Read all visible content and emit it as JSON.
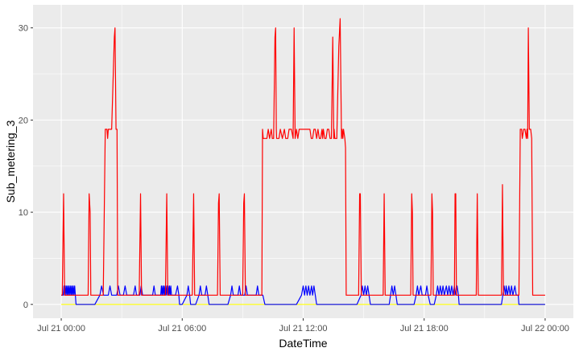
{
  "chart_data": {
    "type": "line",
    "xlabel": "DateTime",
    "ylabel": "Sub_metering_3",
    "x_unit": "minutes from Jul 21 00:00",
    "xlim": [
      -84,
      1524
    ],
    "ylim": [
      -1.5,
      32.5
    ],
    "x_ticks": [
      {
        "value": 0,
        "label": "Jul 21 00:00"
      },
      {
        "value": 360,
        "label": "Jul 21 06:00"
      },
      {
        "value": 720,
        "label": "Jul 21 12:00"
      },
      {
        "value": 1080,
        "label": "Jul 21 18:00"
      },
      {
        "value": 1440,
        "label": "Jul 22 00:00"
      }
    ],
    "y_ticks": [
      0,
      10,
      20,
      30
    ],
    "grid": true,
    "legend": "none",
    "colors": {
      "panel": "#ebebeb",
      "grid": "#ffffff",
      "yellow": "#ffff00",
      "blue": "#0000ff",
      "red": "#ff0000"
    },
    "series": [
      {
        "color": "#ffff00",
        "points": [
          [
            0,
            0
          ],
          [
            1440,
            0
          ]
        ]
      },
      {
        "color": "#0000ff",
        "points": [
          [
            0,
            1
          ],
          [
            6,
            1
          ],
          [
            8,
            2
          ],
          [
            10,
            1
          ],
          [
            12,
            2
          ],
          [
            14,
            1
          ],
          [
            16,
            2
          ],
          [
            18,
            1
          ],
          [
            20,
            2
          ],
          [
            22,
            1
          ],
          [
            24,
            2
          ],
          [
            26,
            1
          ],
          [
            28,
            2
          ],
          [
            30,
            1
          ],
          [
            32,
            2
          ],
          [
            34,
            1
          ],
          [
            36,
            2
          ],
          [
            38,
            1
          ],
          [
            40,
            2
          ],
          [
            42,
            1
          ],
          [
            44,
            0
          ],
          [
            100,
            0
          ],
          [
            115,
            1
          ],
          [
            120,
            2
          ],
          [
            126,
            1
          ],
          [
            140,
            1
          ],
          [
            145,
            2
          ],
          [
            150,
            1
          ],
          [
            165,
            1
          ],
          [
            170,
            2
          ],
          [
            175,
            1
          ],
          [
            185,
            1
          ],
          [
            190,
            2
          ],
          [
            195,
            1
          ],
          [
            215,
            1
          ],
          [
            220,
            2
          ],
          [
            224,
            1
          ],
          [
            234,
            1
          ],
          [
            238,
            2
          ],
          [
            242,
            1
          ],
          [
            272,
            1
          ],
          [
            276,
            2
          ],
          [
            280,
            1
          ],
          [
            296,
            1
          ],
          [
            298,
            2
          ],
          [
            300,
            1
          ],
          [
            302,
            2
          ],
          [
            304,
            1
          ],
          [
            306,
            2
          ],
          [
            308,
            1
          ],
          [
            310,
            2
          ],
          [
            312,
            1
          ],
          [
            314,
            2
          ],
          [
            316,
            1
          ],
          [
            318,
            2
          ],
          [
            320,
            1
          ],
          [
            322,
            2
          ],
          [
            324,
            1
          ],
          [
            326,
            2
          ],
          [
            328,
            1
          ],
          [
            340,
            1
          ],
          [
            346,
            2
          ],
          [
            350,
            1
          ],
          [
            352,
            0
          ],
          [
            360,
            0
          ],
          [
            374,
            1
          ],
          [
            378,
            2
          ],
          [
            382,
            1
          ],
          [
            385,
            0
          ],
          [
            400,
            0
          ],
          [
            410,
            1
          ],
          [
            414,
            2
          ],
          [
            418,
            1
          ],
          [
            428,
            1
          ],
          [
            432,
            2
          ],
          [
            436,
            1
          ],
          [
            440,
            0
          ],
          [
            496,
            0
          ],
          [
            504,
            1
          ],
          [
            508,
            2
          ],
          [
            512,
            1
          ],
          [
            526,
            1
          ],
          [
            530,
            2
          ],
          [
            534,
            1
          ],
          [
            546,
            1
          ],
          [
            550,
            2
          ],
          [
            554,
            1
          ],
          [
            580,
            1
          ],
          [
            584,
            2
          ],
          [
            588,
            1
          ],
          [
            600,
            1
          ],
          [
            606,
            0
          ],
          [
            700,
            0
          ],
          [
            715,
            1
          ],
          [
            720,
            2
          ],
          [
            724,
            1
          ],
          [
            728,
            2
          ],
          [
            732,
            1
          ],
          [
            736,
            2
          ],
          [
            740,
            1
          ],
          [
            745,
            2
          ],
          [
            748,
            1
          ],
          [
            752,
            2
          ],
          [
            756,
            1
          ],
          [
            760,
            0
          ],
          [
            880,
            0
          ],
          [
            892,
            1
          ],
          [
            896,
            2
          ],
          [
            900,
            1
          ],
          [
            904,
            2
          ],
          [
            908,
            1
          ],
          [
            912,
            2
          ],
          [
            916,
            1
          ],
          [
            920,
            0
          ],
          [
            976,
            0
          ],
          [
            980,
            1
          ],
          [
            984,
            2
          ],
          [
            988,
            1
          ],
          [
            992,
            2
          ],
          [
            996,
            1
          ],
          [
            1000,
            0
          ],
          [
            1050,
            0
          ],
          [
            1056,
            1
          ],
          [
            1060,
            2
          ],
          [
            1064,
            1
          ],
          [
            1070,
            2
          ],
          [
            1074,
            1
          ],
          [
            1084,
            1
          ],
          [
            1088,
            2
          ],
          [
            1092,
            1
          ],
          [
            1098,
            0
          ],
          [
            1110,
            0
          ],
          [
            1116,
            1
          ],
          [
            1120,
            2
          ],
          [
            1124,
            1
          ],
          [
            1128,
            2
          ],
          [
            1132,
            1
          ],
          [
            1136,
            2
          ],
          [
            1140,
            1
          ],
          [
            1146,
            2
          ],
          [
            1150,
            1
          ],
          [
            1154,
            2
          ],
          [
            1158,
            1
          ],
          [
            1162,
            2
          ],
          [
            1166,
            1
          ],
          [
            1170,
            2
          ],
          [
            1174,
            1
          ],
          [
            1178,
            2
          ],
          [
            1182,
            1
          ],
          [
            1184,
            0
          ],
          [
            1310,
            0
          ],
          [
            1314,
            1
          ],
          [
            1318,
            2
          ],
          [
            1322,
            1
          ],
          [
            1324,
            2
          ],
          [
            1328,
            1
          ],
          [
            1332,
            2
          ],
          [
            1336,
            1
          ],
          [
            1340,
            2
          ],
          [
            1344,
            1
          ],
          [
            1350,
            2
          ],
          [
            1354,
            1
          ],
          [
            1360,
            1
          ],
          [
            1362,
            0
          ],
          [
            1440,
            0
          ]
        ]
      },
      {
        "color": "#ff0000",
        "points": [
          [
            0,
            1
          ],
          [
            3,
            1
          ],
          [
            7,
            12
          ],
          [
            10,
            1
          ],
          [
            80,
            1
          ],
          [
            83,
            12
          ],
          [
            86,
            10
          ],
          [
            88,
            1
          ],
          [
            125,
            1
          ],
          [
            131,
            19
          ],
          [
            136,
            19
          ],
          [
            138,
            18
          ],
          [
            140,
            19
          ],
          [
            150,
            19
          ],
          [
            158,
            29
          ],
          [
            160,
            30
          ],
          [
            163,
            19
          ],
          [
            166,
            19
          ],
          [
            168,
            1
          ],
          [
            232,
            1
          ],
          [
            236,
            12
          ],
          [
            239,
            1
          ],
          [
            310,
            1
          ],
          [
            314,
            12
          ],
          [
            317,
            1
          ],
          [
            390,
            1
          ],
          [
            394,
            12
          ],
          [
            397,
            1
          ],
          [
            465,
            1
          ],
          [
            468,
            11
          ],
          [
            470,
            12
          ],
          [
            473,
            1
          ],
          [
            540,
            1
          ],
          [
            543,
            11
          ],
          [
            545,
            12
          ],
          [
            548,
            1
          ],
          [
            597,
            1
          ],
          [
            599,
            19
          ],
          [
            601,
            18
          ],
          [
            612,
            18
          ],
          [
            616,
            19
          ],
          [
            620,
            18
          ],
          [
            625,
            19
          ],
          [
            628,
            18
          ],
          [
            632,
            18
          ],
          [
            636,
            29
          ],
          [
            638,
            30
          ],
          [
            640,
            19
          ],
          [
            641,
            18
          ],
          [
            648,
            18
          ],
          [
            652,
            19
          ],
          [
            658,
            18
          ],
          [
            664,
            19
          ],
          [
            668,
            18
          ],
          [
            674,
            18
          ],
          [
            678,
            19
          ],
          [
            685,
            19
          ],
          [
            690,
            18
          ],
          [
            693,
            30
          ],
          [
            696,
            18
          ],
          [
            700,
            19
          ],
          [
            704,
            18
          ],
          [
            708,
            19
          ],
          [
            720,
            19
          ],
          [
            740,
            19
          ],
          [
            744,
            18
          ],
          [
            748,
            18
          ],
          [
            752,
            19
          ],
          [
            756,
            19
          ],
          [
            760,
            18
          ],
          [
            764,
            19
          ],
          [
            768,
            18
          ],
          [
            772,
            18
          ],
          [
            776,
            19
          ],
          [
            778,
            18
          ],
          [
            780,
            19
          ],
          [
            784,
            18
          ],
          [
            788,
            18
          ],
          [
            792,
            19
          ],
          [
            796,
            19
          ],
          [
            800,
            18
          ],
          [
            804,
            18
          ],
          [
            808,
            29
          ],
          [
            811,
            18
          ],
          [
            812,
            19
          ],
          [
            814,
            18
          ],
          [
            820,
            18
          ],
          [
            826,
            28
          ],
          [
            830,
            31
          ],
          [
            834,
            18
          ],
          [
            836,
            19
          ],
          [
            838,
            18
          ],
          [
            840,
            19
          ],
          [
            844,
            18
          ],
          [
            846,
            17
          ],
          [
            848,
            1
          ],
          [
            885,
            1
          ],
          [
            888,
            12
          ],
          [
            890,
            12
          ],
          [
            893,
            1
          ],
          [
            958,
            1
          ],
          [
            961,
            12
          ],
          [
            964,
            1
          ],
          [
            1040,
            1
          ],
          [
            1043,
            12
          ],
          [
            1045,
            10
          ],
          [
            1047,
            1
          ],
          [
            1100,
            1
          ],
          [
            1103,
            12
          ],
          [
            1105,
            10
          ],
          [
            1107,
            1
          ],
          [
            1170,
            1
          ],
          [
            1172,
            12
          ],
          [
            1174,
            12
          ],
          [
            1176,
            1
          ],
          [
            1235,
            1
          ],
          [
            1238,
            12
          ],
          [
            1241,
            1
          ],
          [
            1310,
            1
          ],
          [
            1313,
            13
          ],
          [
            1316,
            1
          ],
          [
            1362,
            1
          ],
          [
            1366,
            19
          ],
          [
            1370,
            19
          ],
          [
            1372,
            18
          ],
          [
            1376,
            19
          ],
          [
            1380,
            19
          ],
          [
            1384,
            18
          ],
          [
            1386,
            19
          ],
          [
            1388,
            18
          ],
          [
            1390,
            30
          ],
          [
            1393,
            19
          ],
          [
            1397,
            19
          ],
          [
            1400,
            18
          ],
          [
            1403,
            1
          ],
          [
            1440,
            1
          ]
        ]
      }
    ]
  }
}
